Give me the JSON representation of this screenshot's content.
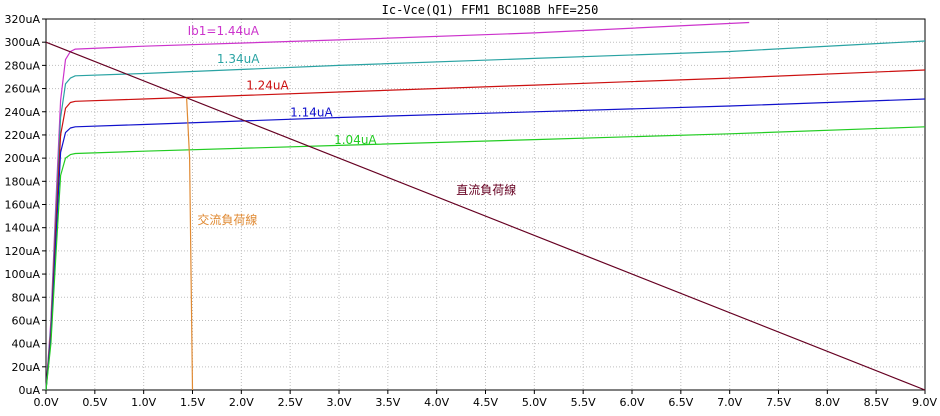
{
  "chart_data": {
    "type": "line",
    "title": "Ic-Vce(Q1) FFM1 BC108B hFE=250",
    "xlabel": "",
    "ylabel": "",
    "xlim": [
      0,
      9.0
    ],
    "ylim": [
      0,
      320
    ],
    "x_ticks": [
      "0.0V",
      "0.5V",
      "1.0V",
      "1.5V",
      "2.0V",
      "2.5V",
      "3.0V",
      "3.5V",
      "4.0V",
      "4.5V",
      "5.0V",
      "5.5V",
      "6.0V",
      "6.5V",
      "7.0V",
      "7.5V",
      "8.0V",
      "8.5V",
      "9.0V"
    ],
    "y_ticks": [
      "0uA",
      "20uA",
      "40uA",
      "60uA",
      "80uA",
      "100uA",
      "120uA",
      "140uA",
      "160uA",
      "180uA",
      "200uA",
      "220uA",
      "240uA",
      "260uA",
      "280uA",
      "300uA",
      "320uA"
    ],
    "grid": true,
    "series": [
      {
        "name": "Ib1=1.44uA",
        "color": "#cc33cc",
        "points": [
          [
            0,
            0
          ],
          [
            0.05,
            60
          ],
          [
            0.1,
            160
          ],
          [
            0.15,
            250
          ],
          [
            0.2,
            285
          ],
          [
            0.25,
            292
          ],
          [
            0.3,
            294
          ],
          [
            1,
            296.5
          ],
          [
            3,
            302
          ],
          [
            5,
            308
          ],
          [
            7.2,
            317
          ]
        ]
      },
      {
        "name": "1.34uA",
        "color": "#2aa3a3",
        "points": [
          [
            0,
            0
          ],
          [
            0.05,
            55
          ],
          [
            0.1,
            150
          ],
          [
            0.15,
            235
          ],
          [
            0.2,
            264
          ],
          [
            0.25,
            269
          ],
          [
            0.3,
            271
          ],
          [
            1,
            273
          ],
          [
            3,
            280
          ],
          [
            5,
            286
          ],
          [
            7,
            292
          ],
          [
            9,
            301
          ]
        ]
      },
      {
        "name": "1.24uA",
        "color": "#cc1111",
        "points": [
          [
            0,
            0
          ],
          [
            0.05,
            50
          ],
          [
            0.1,
            140
          ],
          [
            0.15,
            220
          ],
          [
            0.2,
            243
          ],
          [
            0.25,
            248
          ],
          [
            0.3,
            249
          ],
          [
            1,
            251
          ],
          [
            3,
            257
          ],
          [
            5,
            263
          ],
          [
            7,
            269
          ],
          [
            9,
            276
          ]
        ]
      },
      {
        "name": "1.14uA",
        "color": "#1111cc",
        "points": [
          [
            0,
            0
          ],
          [
            0.05,
            45
          ],
          [
            0.1,
            128
          ],
          [
            0.15,
            205
          ],
          [
            0.2,
            222
          ],
          [
            0.25,
            226
          ],
          [
            0.3,
            227
          ],
          [
            1,
            229
          ],
          [
            3,
            235
          ],
          [
            5,
            240
          ],
          [
            7,
            245
          ],
          [
            9,
            251
          ]
        ]
      },
      {
        "name": "1.04uA",
        "color": "#22cc22",
        "points": [
          [
            0,
            0
          ],
          [
            0.05,
            40
          ],
          [
            0.1,
            115
          ],
          [
            0.15,
            185
          ],
          [
            0.2,
            200
          ],
          [
            0.25,
            203
          ],
          [
            0.3,
            204
          ],
          [
            1,
            206
          ],
          [
            3,
            211
          ],
          [
            5,
            216
          ],
          [
            7,
            221
          ],
          [
            9,
            227
          ]
        ]
      },
      {
        "name": "直流負荷線",
        "color": "#660022",
        "points": [
          [
            0,
            300
          ],
          [
            9.0,
            0
          ]
        ]
      },
      {
        "name": "交流負荷線",
        "color": "#e08a33",
        "points": [
          [
            1.44,
            252
          ],
          [
            1.47,
            200
          ],
          [
            1.5,
            0
          ]
        ]
      }
    ],
    "labels": [
      {
        "text": "Ib1=1.44uA",
        "color": "#cc33cc",
        "x": 1.45,
        "y": 306
      },
      {
        "text": "1.34uA",
        "color": "#2aa3a3",
        "x": 1.75,
        "y": 282
      },
      {
        "text": "1.24uA",
        "color": "#cc1111",
        "x": 2.05,
        "y": 259
      },
      {
        "text": "1.14uA",
        "color": "#1111cc",
        "x": 2.5,
        "y": 236
      },
      {
        "text": "1.04uA",
        "color": "#22cc22",
        "x": 2.95,
        "y": 212
      },
      {
        "text": "直流負荷線",
        "color": "#660022",
        "x": 4.2,
        "y": 169
      },
      {
        "text": "交流負荷線",
        "color": "#e08a33",
        "x": 1.55,
        "y": 143
      }
    ]
  }
}
